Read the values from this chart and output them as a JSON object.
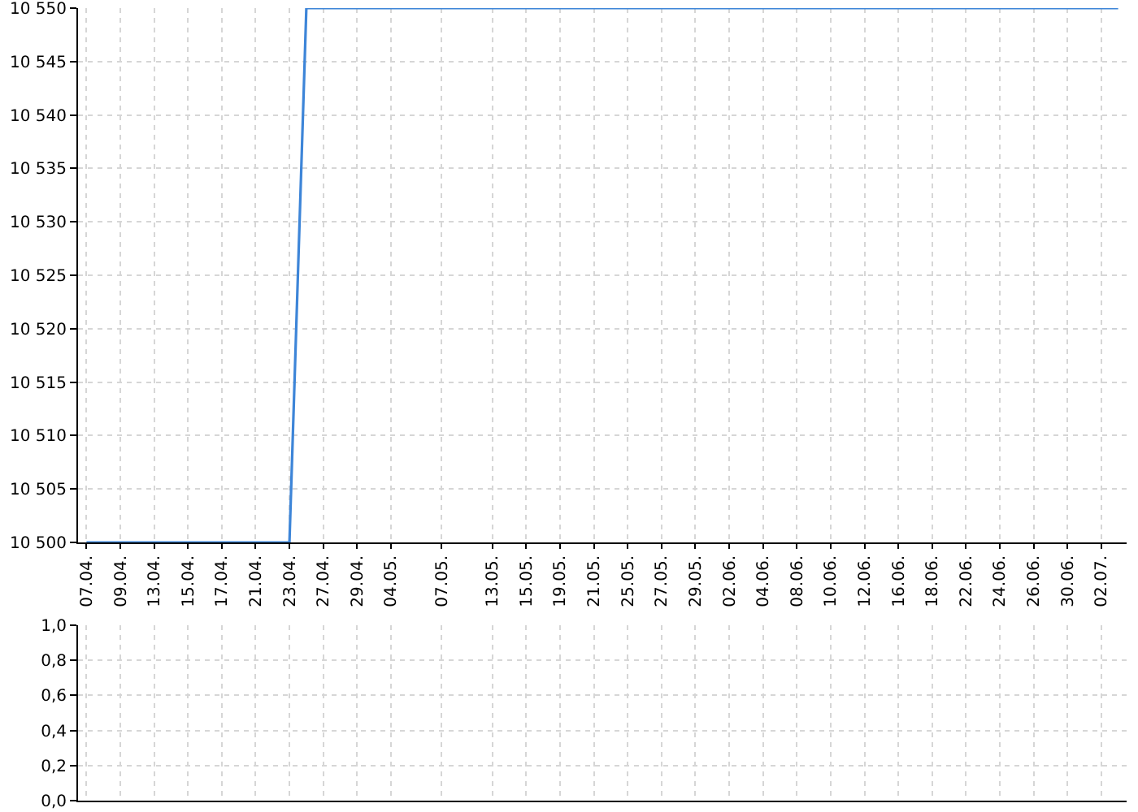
{
  "chart_data": [
    {
      "type": "line",
      "categories": [
        "07.04.",
        null,
        "09.04.",
        null,
        "13.04.",
        null,
        "15.04.",
        null,
        "17.04.",
        null,
        "21.04.",
        null,
        "23.04.",
        null,
        "27.04.",
        null,
        "29.04.",
        null,
        "04.05.",
        null,
        null,
        "07.05.",
        null,
        null,
        "13.05.",
        null,
        "15.05.",
        null,
        "19.05.",
        null,
        "21.05.",
        null,
        "25.05.",
        null,
        "27.05.",
        null,
        "29.05.",
        null,
        "02.06.",
        null,
        "04.06.",
        null,
        "08.06.",
        null,
        "10.06.",
        null,
        "12.06.",
        null,
        "16.06.",
        null,
        "18.06.",
        null,
        "22.06.",
        null,
        "24.06.",
        null,
        "26.06.",
        null,
        "30.06.",
        null,
        "02.07.",
        null
      ],
      "values": [
        10500,
        10500,
        10500,
        10500,
        10500,
        10500,
        10500,
        10500,
        10500,
        10500,
        10500,
        10500,
        10500,
        10550,
        10550,
        10550,
        10550,
        10550,
        10550,
        10550,
        10550,
        10550,
        10550,
        10550,
        10550,
        10550,
        10550,
        10550,
        10550,
        10550,
        10550,
        10550,
        10550,
        10550,
        10550,
        10550,
        10550,
        10550,
        10550,
        10550,
        10550,
        10550,
        10550,
        10550,
        10550,
        10550,
        10550,
        10550,
        10550,
        10550,
        10550,
        10550,
        10550,
        10550,
        10550,
        10550,
        10550,
        10550,
        10550,
        10550,
        10550,
        10550
      ],
      "color": "#3d85d8",
      "ylim": [
        10500,
        10550
      ],
      "yticks": [
        {
          "value": 10500,
          "label": "10 500"
        },
        {
          "value": 10505,
          "label": "10 505"
        },
        {
          "value": 10510,
          "label": "10 510"
        },
        {
          "value": 10515,
          "label": "10 515"
        },
        {
          "value": 10520,
          "label": "10 520"
        },
        {
          "value": 10525,
          "label": "10 525"
        },
        {
          "value": 10530,
          "label": "10 530"
        },
        {
          "value": 10535,
          "label": "10 535"
        },
        {
          "value": 10540,
          "label": "10 540"
        },
        {
          "value": 10545,
          "label": "10 545"
        },
        {
          "value": 10550,
          "label": "10 550"
        }
      ],
      "grid": true
    },
    {
      "type": "line",
      "categories": [
        "07.04.",
        null,
        "09.04.",
        null,
        "13.04.",
        null,
        "15.04.",
        null,
        "17.04.",
        null,
        "21.04.",
        null,
        "23.04.",
        null,
        "27.04.",
        null,
        "29.04.",
        null,
        "04.05.",
        null,
        null,
        "07.05.",
        null,
        null,
        "13.05.",
        null,
        "15.05.",
        null,
        "19.05.",
        null,
        "21.05.",
        null,
        "25.05.",
        null,
        "27.05.",
        null,
        "29.05.",
        null,
        "02.06.",
        null,
        "04.06.",
        null,
        "08.06.",
        null,
        "10.06.",
        null,
        "12.06.",
        null,
        "16.06.",
        null,
        "18.06.",
        null,
        "22.06.",
        null,
        "24.06.",
        null,
        "26.06.",
        null,
        "30.06.",
        null,
        "02.07.",
        null
      ],
      "values": [
        null,
        null,
        null,
        null,
        null,
        null,
        null,
        null,
        null,
        null,
        null,
        null,
        null,
        null,
        null,
        null,
        null,
        null,
        null,
        null,
        null,
        null,
        null,
        null,
        null,
        null,
        null,
        null,
        null,
        null,
        null,
        null,
        null,
        null,
        null,
        null,
        null,
        null,
        null,
        null,
        null,
        null,
        null,
        null,
        null,
        null,
        null,
        null,
        null,
        null,
        null,
        null,
        null,
        null,
        null,
        null,
        null,
        null,
        null,
        null,
        null,
        null
      ],
      "ylim": [
        0,
        1
      ],
      "yticks": [
        {
          "value": 0,
          "label": "0,0"
        },
        {
          "value": 0.2,
          "label": "0,2"
        },
        {
          "value": 0.4,
          "label": "0,4"
        },
        {
          "value": 0.6,
          "label": "0,6"
        },
        {
          "value": 0.8,
          "label": "0,8"
        },
        {
          "value": 1,
          "label": "1,0"
        }
      ],
      "grid": true,
      "tick_labels": "y"
    }
  ]
}
